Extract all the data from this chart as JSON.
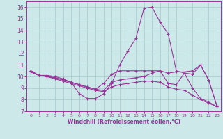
{
  "xlabel": "Windchill (Refroidissement éolien,°C)",
  "background_color": "#cce8e8",
  "grid_color": "#aacece",
  "line_color": "#993399",
  "xlim": [
    -0.5,
    23.5
  ],
  "ylim": [
    7.0,
    16.5
  ],
  "yticks": [
    7,
    8,
    9,
    10,
    11,
    12,
    13,
    14,
    15,
    16
  ],
  "xticks": [
    0,
    1,
    2,
    3,
    4,
    5,
    6,
    7,
    8,
    9,
    10,
    11,
    12,
    13,
    14,
    15,
    16,
    17,
    18,
    19,
    20,
    21,
    22,
    23
  ],
  "series": [
    {
      "x": [
        0,
        1,
        2,
        3,
        4,
        5,
        6,
        7,
        8,
        9,
        10,
        11,
        12,
        13,
        14,
        15,
        16,
        17,
        18,
        19,
        20,
        21,
        22,
        23
      ],
      "y": [
        10.5,
        10.1,
        10.1,
        10.0,
        9.8,
        9.5,
        8.5,
        8.1,
        8.1,
        8.5,
        9.4,
        11.0,
        12.2,
        13.3,
        15.9,
        16.0,
        14.7,
        13.7,
        10.5,
        10.3,
        10.2,
        11.0,
        9.7,
        7.5
      ]
    },
    {
      "x": [
        0,
        1,
        2,
        3,
        4,
        5,
        6,
        7,
        8,
        9,
        10,
        11,
        12,
        13,
        14,
        15,
        16,
        17,
        18,
        19,
        20,
        21,
        22,
        23
      ],
      "y": [
        10.5,
        10.1,
        10.0,
        9.9,
        9.7,
        9.5,
        9.3,
        9.1,
        8.9,
        9.4,
        10.2,
        10.5,
        10.5,
        10.5,
        10.5,
        10.5,
        10.5,
        10.3,
        10.4,
        10.4,
        10.5,
        11.0,
        9.7,
        7.5
      ]
    },
    {
      "x": [
        0,
        1,
        2,
        3,
        4,
        5,
        6,
        7,
        8,
        9,
        10,
        11,
        12,
        13,
        14,
        15,
        16,
        17,
        18,
        19,
        20,
        21,
        22,
        23
      ],
      "y": [
        10.4,
        10.1,
        10.0,
        9.9,
        9.7,
        9.5,
        9.3,
        9.1,
        8.9,
        8.8,
        9.5,
        9.7,
        9.8,
        9.9,
        10.0,
        10.3,
        10.5,
        9.4,
        9.3,
        10.3,
        9.0,
        8.1,
        7.8,
        7.4
      ]
    },
    {
      "x": [
        0,
        1,
        2,
        3,
        4,
        5,
        6,
        7,
        8,
        9,
        10,
        11,
        12,
        13,
        14,
        15,
        16,
        17,
        18,
        19,
        20,
        21,
        22,
        23
      ],
      "y": [
        10.4,
        10.1,
        10.0,
        9.8,
        9.6,
        9.4,
        9.2,
        9.0,
        8.8,
        8.7,
        9.1,
        9.3,
        9.4,
        9.5,
        9.6,
        9.6,
        9.5,
        9.1,
        8.9,
        8.8,
        8.4,
        8.0,
        7.7,
        7.4
      ]
    }
  ]
}
